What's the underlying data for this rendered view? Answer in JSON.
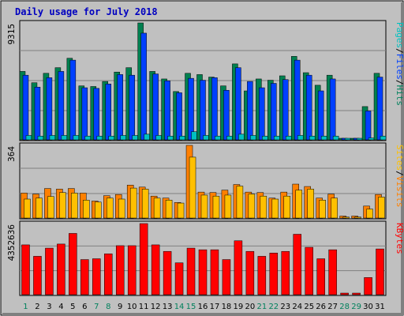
{
  "chart_data": {
    "type": "bar",
    "title": "Daily usage for July 2018",
    "background": "#c0c0c0",
    "frame_color": "#000000",
    "days": [
      "1",
      "2",
      "3",
      "4",
      "5",
      "6",
      "7",
      "8",
      "9",
      "10",
      "11",
      "12",
      "13",
      "14",
      "15",
      "16",
      "17",
      "18",
      "19",
      "20",
      "21",
      "22",
      "23",
      "24",
      "25",
      "26",
      "27",
      "28",
      "29",
      "30",
      "31"
    ],
    "weekend_days": [
      "1",
      "7",
      "8",
      "14",
      "15",
      "21",
      "22",
      "28",
      "29"
    ],
    "day_label_colors": {
      "weekday": "#000000",
      "weekend": "#00805c"
    },
    "panels": [
      {
        "id": "pages-files-hits",
        "max_label": "9315",
        "ylim": [
          0,
          9315
        ],
        "side_labels": [
          {
            "text": "Pages",
            "color": "#00c0c0"
          },
          {
            "text": "/",
            "color": "#000000"
          },
          {
            "text": "Files",
            "color": "#0040ff"
          },
          {
            "text": "/",
            "color": "#000000"
          },
          {
            "text": "Hits",
            "color": "#00805c"
          }
        ],
        "series": [
          {
            "name": "Hits",
            "color": "#008050",
            "values": [
              5450,
              4550,
              5300,
              5750,
              6500,
              4300,
              4250,
              4650,
              5400,
              5750,
              9315,
              5450,
              4850,
              3850,
              5300,
              5200,
              5000,
              4300,
              6050,
              3900,
              4850,
              4750,
              5100,
              6650,
              5350,
              4350,
              5150,
              0,
              0,
              2650,
              5300
            ]
          },
          {
            "name": "Files",
            "color": "#0040ff",
            "values": [
              5150,
              4200,
              4950,
              5450,
              6350,
              4150,
              4100,
              4450,
              5200,
              5150,
              8500,
              5250,
              4700,
              3750,
              4900,
              4750,
              4950,
              3950,
              5750,
              4650,
              4150,
              4500,
              4800,
              6350,
              5150,
              3900,
              4850,
              0,
              0,
              2300,
              5000
            ]
          },
          {
            "name": "Pages",
            "color": "#00c0c0",
            "values": [
              350,
              300,
              350,
              350,
              350,
              300,
              300,
              300,
              350,
              350,
              450,
              350,
              300,
              300,
              650,
              350,
              300,
              300,
              450,
              350,
              300,
              300,
              300,
              350,
              300,
              300,
              300,
              0,
              0,
              150,
              300
            ]
          }
        ]
      },
      {
        "id": "visits-sites",
        "max_label": "364",
        "ylim": [
          0,
          364
        ],
        "side_labels": [
          {
            "text": "Sites",
            "color": "#ffc000"
          },
          {
            "text": "/",
            "color": "#000000"
          },
          {
            "text": "Visits",
            "color": "#ff8000"
          }
        ],
        "series": [
          {
            "name": "Visits",
            "color": "#ff8000",
            "values": [
              125,
              120,
              148,
              145,
              148,
              125,
              85,
              112,
              118,
              165,
              155,
              110,
              100,
              78,
              364,
              130,
              128,
              140,
              168,
              130,
              128,
              100,
              130,
              170,
              158,
              100,
              120,
              10,
              10,
              60,
              118
            ]
          },
          {
            "name": "Sites",
            "color": "#ffc000",
            "values": [
              95,
              100,
              108,
              128,
              125,
              90,
              80,
              100,
              95,
              150,
              145,
              100,
              90,
              75,
              305,
              115,
              110,
              115,
              160,
              120,
              110,
              95,
              110,
              140,
              145,
              90,
              100,
              5,
              5,
              45,
              105
            ]
          }
        ]
      },
      {
        "id": "kbytes",
        "max_label": "4352636",
        "ylim": [
          0,
          4352636
        ],
        "side_labels": [
          {
            "text": "KBytes",
            "color": "#ff0000"
          }
        ],
        "series": [
          {
            "name": "KBytes",
            "color": "#ff0000",
            "values": [
              3050000,
              2350000,
              2850000,
              3100000,
              3750000,
              2150000,
              2200000,
              2500000,
              3000000,
              3000000,
              4352636,
              3050000,
              2650000,
              1950000,
              2850000,
              2750000,
              2750000,
              2150000,
              3300000,
              2650000,
              2350000,
              2550000,
              2650000,
              3700000,
              2900000,
              2200000,
              2750000,
              0,
              0,
              1050000,
              2800000
            ]
          }
        ]
      }
    ]
  }
}
